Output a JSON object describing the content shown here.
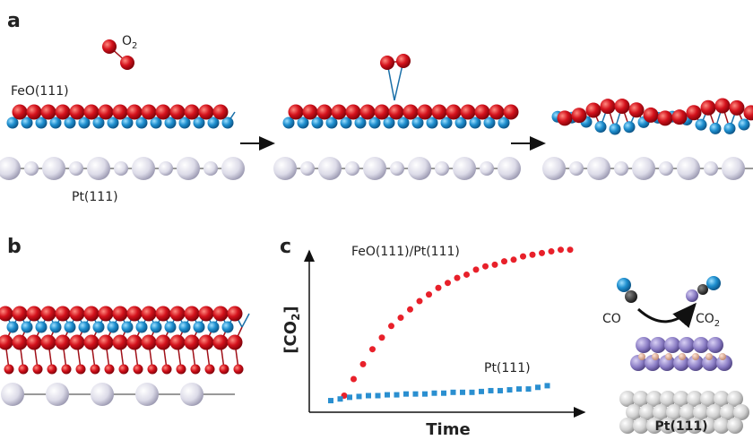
{
  "panels": {
    "a": {
      "label": "a",
      "o2": {
        "text": "O",
        "sub": "2"
      },
      "feo": "FeO(111)",
      "pt": "Pt(111)"
    },
    "b": {
      "label": "b"
    },
    "c": {
      "label": "c",
      "inset": {
        "co": "CO",
        "co2": {
          "text": "CO",
          "sub": "2"
        },
        "pt": "Pt(111)"
      }
    }
  },
  "chart_data": {
    "type": "scatter",
    "x_label": "Time",
    "y_label": {
      "text": "[CO",
      "sub": "2",
      "close": "]"
    },
    "xlim": [
      0,
      100
    ],
    "ylim": [
      0,
      100
    ],
    "series": [
      {
        "name": "FeO(111)/Pt(111)",
        "color": "#e8202a",
        "marker": "circle",
        "x": [
          13,
          16.5,
          20,
          23.5,
          27,
          30.5,
          34,
          37.5,
          41,
          44.5,
          48,
          51.5,
          55,
          58.5,
          62,
          65.5,
          69,
          72.5,
          76,
          79.5,
          83,
          86.5,
          90,
          93.5,
          97
        ],
        "values": [
          10,
          20,
          29,
          38,
          45,
          52,
          57,
          62,
          67,
          71,
          75,
          78,
          81,
          83,
          86,
          88,
          89,
          91,
          92,
          94,
          95,
          96,
          97,
          98,
          98
        ]
      },
      {
        "name": "Pt(111)",
        "color": "#2a8fd0",
        "marker": "square",
        "x": [
          8,
          11.5,
          15,
          18.5,
          22,
          25.5,
          29,
          32.5,
          36,
          39.5,
          43,
          46.5,
          50,
          53.5,
          57,
          60.5,
          64,
          67.5,
          71,
          74.5,
          78,
          81.5,
          85,
          88.5
        ],
        "values": [
          7,
          8,
          9,
          9.5,
          10,
          10,
          10.5,
          10.5,
          11,
          11,
          11,
          11.5,
          11.5,
          12,
          12,
          12,
          12.5,
          13,
          13,
          13.5,
          14,
          14,
          15,
          16
        ]
      }
    ]
  }
}
